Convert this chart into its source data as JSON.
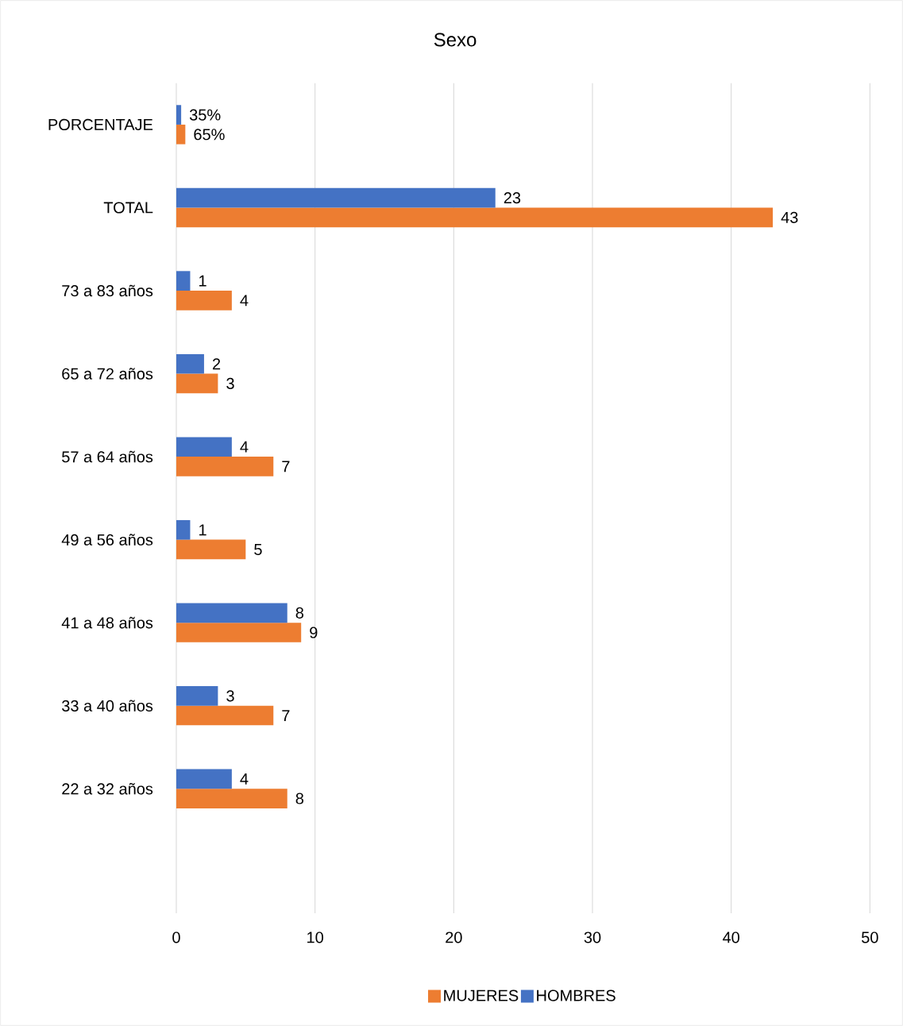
{
  "chart_data": {
    "type": "bar",
    "orientation": "horizontal",
    "title": "Sexo",
    "categories": [
      "PORCENTAJE",
      "TOTAL",
      "73 a 83 años",
      "65 a 72 años",
      "57 a 64 años",
      "49 a 56 años",
      "41 a 48 años",
      "33 a 40 años",
      "22 a 32 años",
      null
    ],
    "series": [
      {
        "name": "MUJERES",
        "color": "#ed7d31",
        "values": [
          0.65,
          43,
          4,
          3,
          7,
          5,
          9,
          7,
          8,
          null
        ],
        "value_labels": [
          "65%",
          "43",
          "4",
          "3",
          "7",
          "5",
          "9",
          "7",
          "8",
          null
        ]
      },
      {
        "name": "HOMBRES",
        "color": "#4472c4",
        "values": [
          0.35,
          23,
          1,
          2,
          4,
          1,
          8,
          3,
          4,
          null
        ],
        "value_labels": [
          "35%",
          "23",
          "1",
          "2",
          "4",
          "1",
          "8",
          "3",
          "4",
          null
        ]
      }
    ],
    "xlim": [
      0,
      50
    ],
    "xticks": [
      0,
      10,
      20,
      30,
      40,
      50
    ],
    "grid": "x",
    "legend": "bottom"
  }
}
